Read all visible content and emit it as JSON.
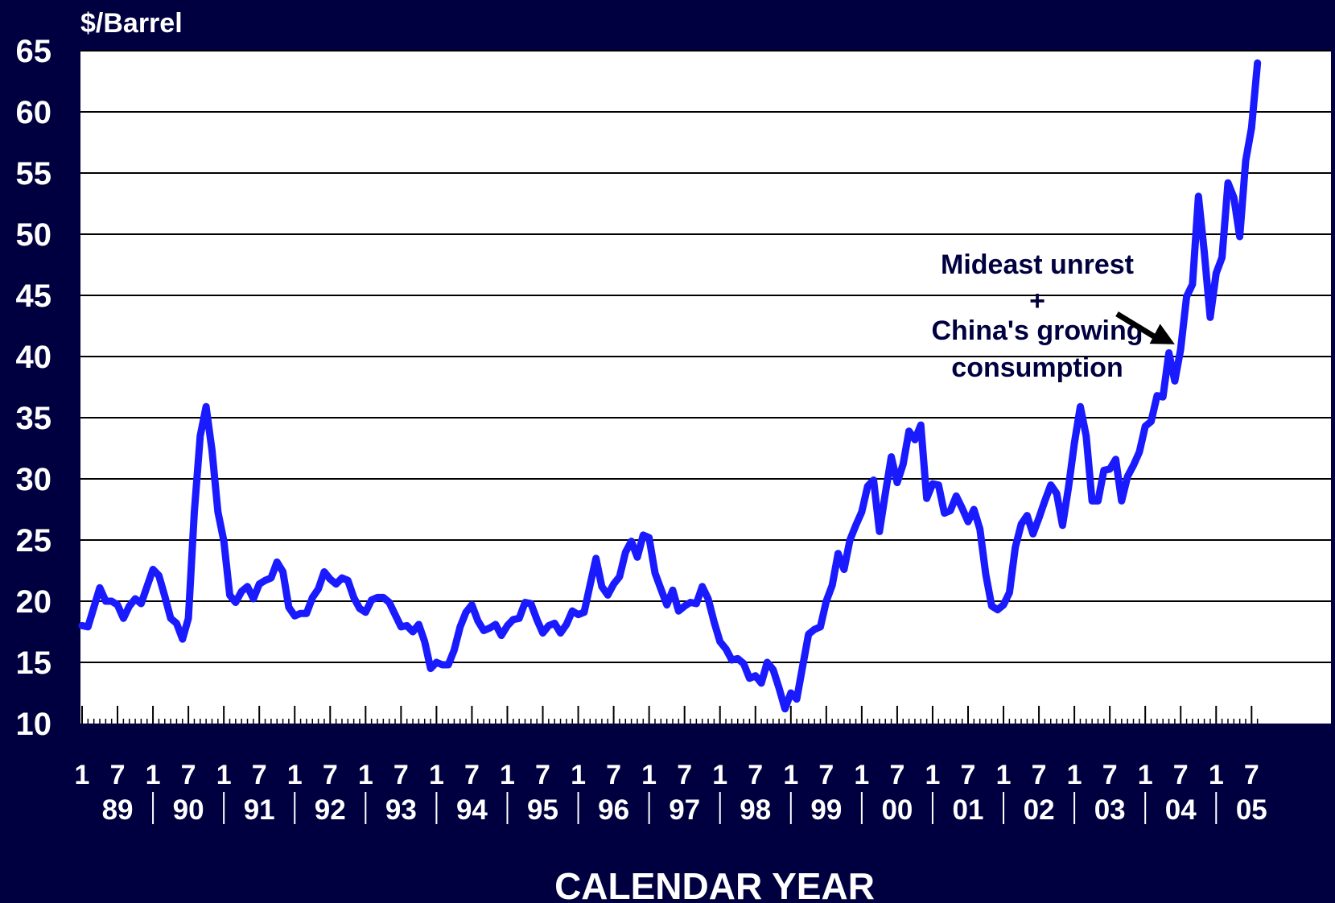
{
  "chart_data": {
    "type": "line",
    "title": "",
    "ylabel": "$/Barrel",
    "xlabel": "CALENDAR YEAR",
    "ylim": [
      10,
      65
    ],
    "yticks": [
      10,
      15,
      20,
      25,
      30,
      35,
      40,
      45,
      50,
      55,
      60,
      65
    ],
    "grid": "horizontal",
    "legend": "none",
    "x_start": "1989-01",
    "x_end": "2005-08",
    "month_tick_labels": [
      "1",
      "7"
    ],
    "year_labels": [
      "89",
      "90",
      "91",
      "92",
      "93",
      "94",
      "95",
      "96",
      "97",
      "98",
      "99",
      "00",
      "01",
      "02",
      "03",
      "04",
      "05"
    ],
    "series": [
      {
        "color": "#1a1aff",
        "x": [
          "1989-01",
          "1989-02",
          "1989-03",
          "1989-04",
          "1989-05",
          "1989-06",
          "1989-07",
          "1989-08",
          "1989-09",
          "1989-10",
          "1989-11",
          "1989-12",
          "1990-01",
          "1990-02",
          "1990-03",
          "1990-04",
          "1990-05",
          "1990-06",
          "1990-07",
          "1990-08",
          "1990-09",
          "1990-10",
          "1990-11",
          "1990-12",
          "1991-01",
          "1991-02",
          "1991-03",
          "1991-04",
          "1991-05",
          "1991-06",
          "1991-07",
          "1991-08",
          "1991-09",
          "1991-10",
          "1991-11",
          "1991-12",
          "1992-01",
          "1992-02",
          "1992-03",
          "1992-04",
          "1992-05",
          "1992-06",
          "1992-07",
          "1992-08",
          "1992-09",
          "1992-10",
          "1992-11",
          "1992-12",
          "1993-01",
          "1993-02",
          "1993-03",
          "1993-04",
          "1993-05",
          "1993-06",
          "1993-07",
          "1993-08",
          "1993-09",
          "1993-10",
          "1993-11",
          "1993-12",
          "1994-01",
          "1994-02",
          "1994-03",
          "1994-04",
          "1994-05",
          "1994-06",
          "1994-07",
          "1994-08",
          "1994-09",
          "1994-10",
          "1994-11",
          "1994-12",
          "1995-01",
          "1995-02",
          "1995-03",
          "1995-04",
          "1995-05",
          "1995-06",
          "1995-07",
          "1995-08",
          "1995-09",
          "1995-10",
          "1995-11",
          "1995-12",
          "1996-01",
          "1996-02",
          "1996-03",
          "1996-04",
          "1996-05",
          "1996-06",
          "1996-07",
          "1996-08",
          "1996-09",
          "1996-10",
          "1996-11",
          "1996-12",
          "1997-01",
          "1997-02",
          "1997-03",
          "1997-04",
          "1997-05",
          "1997-06",
          "1997-07",
          "1997-08",
          "1997-09",
          "1997-10",
          "1997-11",
          "1997-12",
          "1998-01",
          "1998-02",
          "1998-03",
          "1998-04",
          "1998-05",
          "1998-06",
          "1998-07",
          "1998-08",
          "1998-09",
          "1998-10",
          "1998-11",
          "1998-12",
          "1999-01",
          "1999-02",
          "1999-03",
          "1999-04",
          "1999-05",
          "1999-06",
          "1999-07",
          "1999-08",
          "1999-09",
          "1999-10",
          "1999-11",
          "1999-12",
          "2000-01",
          "2000-02",
          "2000-03",
          "2000-04",
          "2000-05",
          "2000-06",
          "2000-07",
          "2000-08",
          "2000-09",
          "2000-10",
          "2000-11",
          "2000-12",
          "2001-01",
          "2001-02",
          "2001-03",
          "2001-04",
          "2001-05",
          "2001-06",
          "2001-07",
          "2001-08",
          "2001-09",
          "2001-10",
          "2001-11",
          "2001-12",
          "2002-01",
          "2002-02",
          "2002-03",
          "2002-04",
          "2002-05",
          "2002-06",
          "2002-07",
          "2002-08",
          "2002-09",
          "2002-10",
          "2002-11",
          "2002-12",
          "2003-01",
          "2003-02",
          "2003-03",
          "2003-04",
          "2003-05",
          "2003-06",
          "2003-07",
          "2003-08",
          "2003-09",
          "2003-10",
          "2003-11",
          "2003-12",
          "2004-01",
          "2004-02",
          "2004-03",
          "2004-04",
          "2004-05",
          "2004-06",
          "2004-07",
          "2004-08",
          "2004-09",
          "2004-10",
          "2004-11",
          "2004-12",
          "2005-01",
          "2005-02",
          "2005-03",
          "2005-04",
          "2005-05",
          "2005-06",
          "2005-07",
          "2005-08"
        ],
        "values": [
          18.0,
          17.9,
          19.5,
          21.1,
          20.0,
          20.0,
          19.7,
          18.6,
          19.6,
          20.2,
          19.8,
          21.2,
          22.6,
          22.1,
          20.4,
          18.6,
          18.2,
          16.9,
          18.6,
          27.3,
          33.5,
          35.9,
          32.3,
          27.3,
          24.9,
          20.5,
          19.9,
          20.8,
          21.2,
          20.2,
          21.4,
          21.7,
          21.9,
          23.2,
          22.4,
          19.5,
          18.8,
          19.0,
          19.0,
          20.3,
          21.0,
          22.4,
          21.8,
          21.4,
          21.9,
          21.7,
          20.3,
          19.4,
          19.1,
          20.1,
          20.3,
          20.3,
          19.9,
          18.9,
          17.9,
          18.0,
          17.5,
          18.1,
          16.7,
          14.5,
          15.0,
          14.8,
          14.8,
          16.0,
          17.9,
          19.1,
          19.7,
          18.4,
          17.6,
          17.8,
          18.1,
          17.2,
          18.0,
          18.5,
          18.6,
          19.9,
          19.8,
          18.5,
          17.4,
          18.0,
          18.2,
          17.4,
          18.1,
          19.2,
          18.9,
          19.1,
          21.3,
          23.5,
          21.2,
          20.5,
          21.4,
          22.0,
          24.0,
          24.9,
          23.6,
          25.4,
          25.2,
          22.3,
          21.0,
          19.7,
          20.9,
          19.2,
          19.6,
          19.9,
          19.8,
          21.2,
          20.2,
          18.3,
          16.7,
          16.1,
          15.2,
          15.3,
          14.9,
          13.7,
          13.9,
          13.3,
          15.0,
          14.4,
          12.9,
          11.2,
          12.5,
          12.0,
          14.7,
          17.3,
          17.7,
          17.9,
          20.0,
          21.3,
          23.9,
          22.6,
          25.0,
          26.2,
          27.3,
          29.4,
          29.9,
          25.7,
          28.8,
          31.8,
          29.7,
          31.2,
          33.9,
          33.2,
          34.4,
          28.4,
          29.6,
          29.5,
          27.2,
          27.4,
          28.6,
          27.6,
          26.5,
          27.5,
          25.9,
          22.2,
          19.6,
          19.3,
          19.7,
          20.7,
          24.4,
          26.3,
          27.0,
          25.5,
          26.8,
          28.2,
          29.5,
          28.8,
          26.2,
          29.3,
          32.9,
          35.9,
          33.5,
          28.2,
          28.2,
          30.7,
          30.8,
          31.6,
          28.2,
          30.2,
          31.1,
          32.2,
          34.3,
          34.7,
          36.8,
          36.7,
          40.3,
          38.0,
          40.6,
          44.9,
          45.9,
          53.1,
          48.5,
          43.2,
          46.8,
          48.1,
          54.2,
          53.0,
          49.8,
          56.0,
          58.7,
          64.0
        ]
      }
    ],
    "annotation": {
      "lines": [
        "Mideast unrest",
        "+",
        "China's growing",
        "consumption"
      ],
      "arrow_target_x": "2004-06",
      "arrow_target_y": 41
    }
  }
}
